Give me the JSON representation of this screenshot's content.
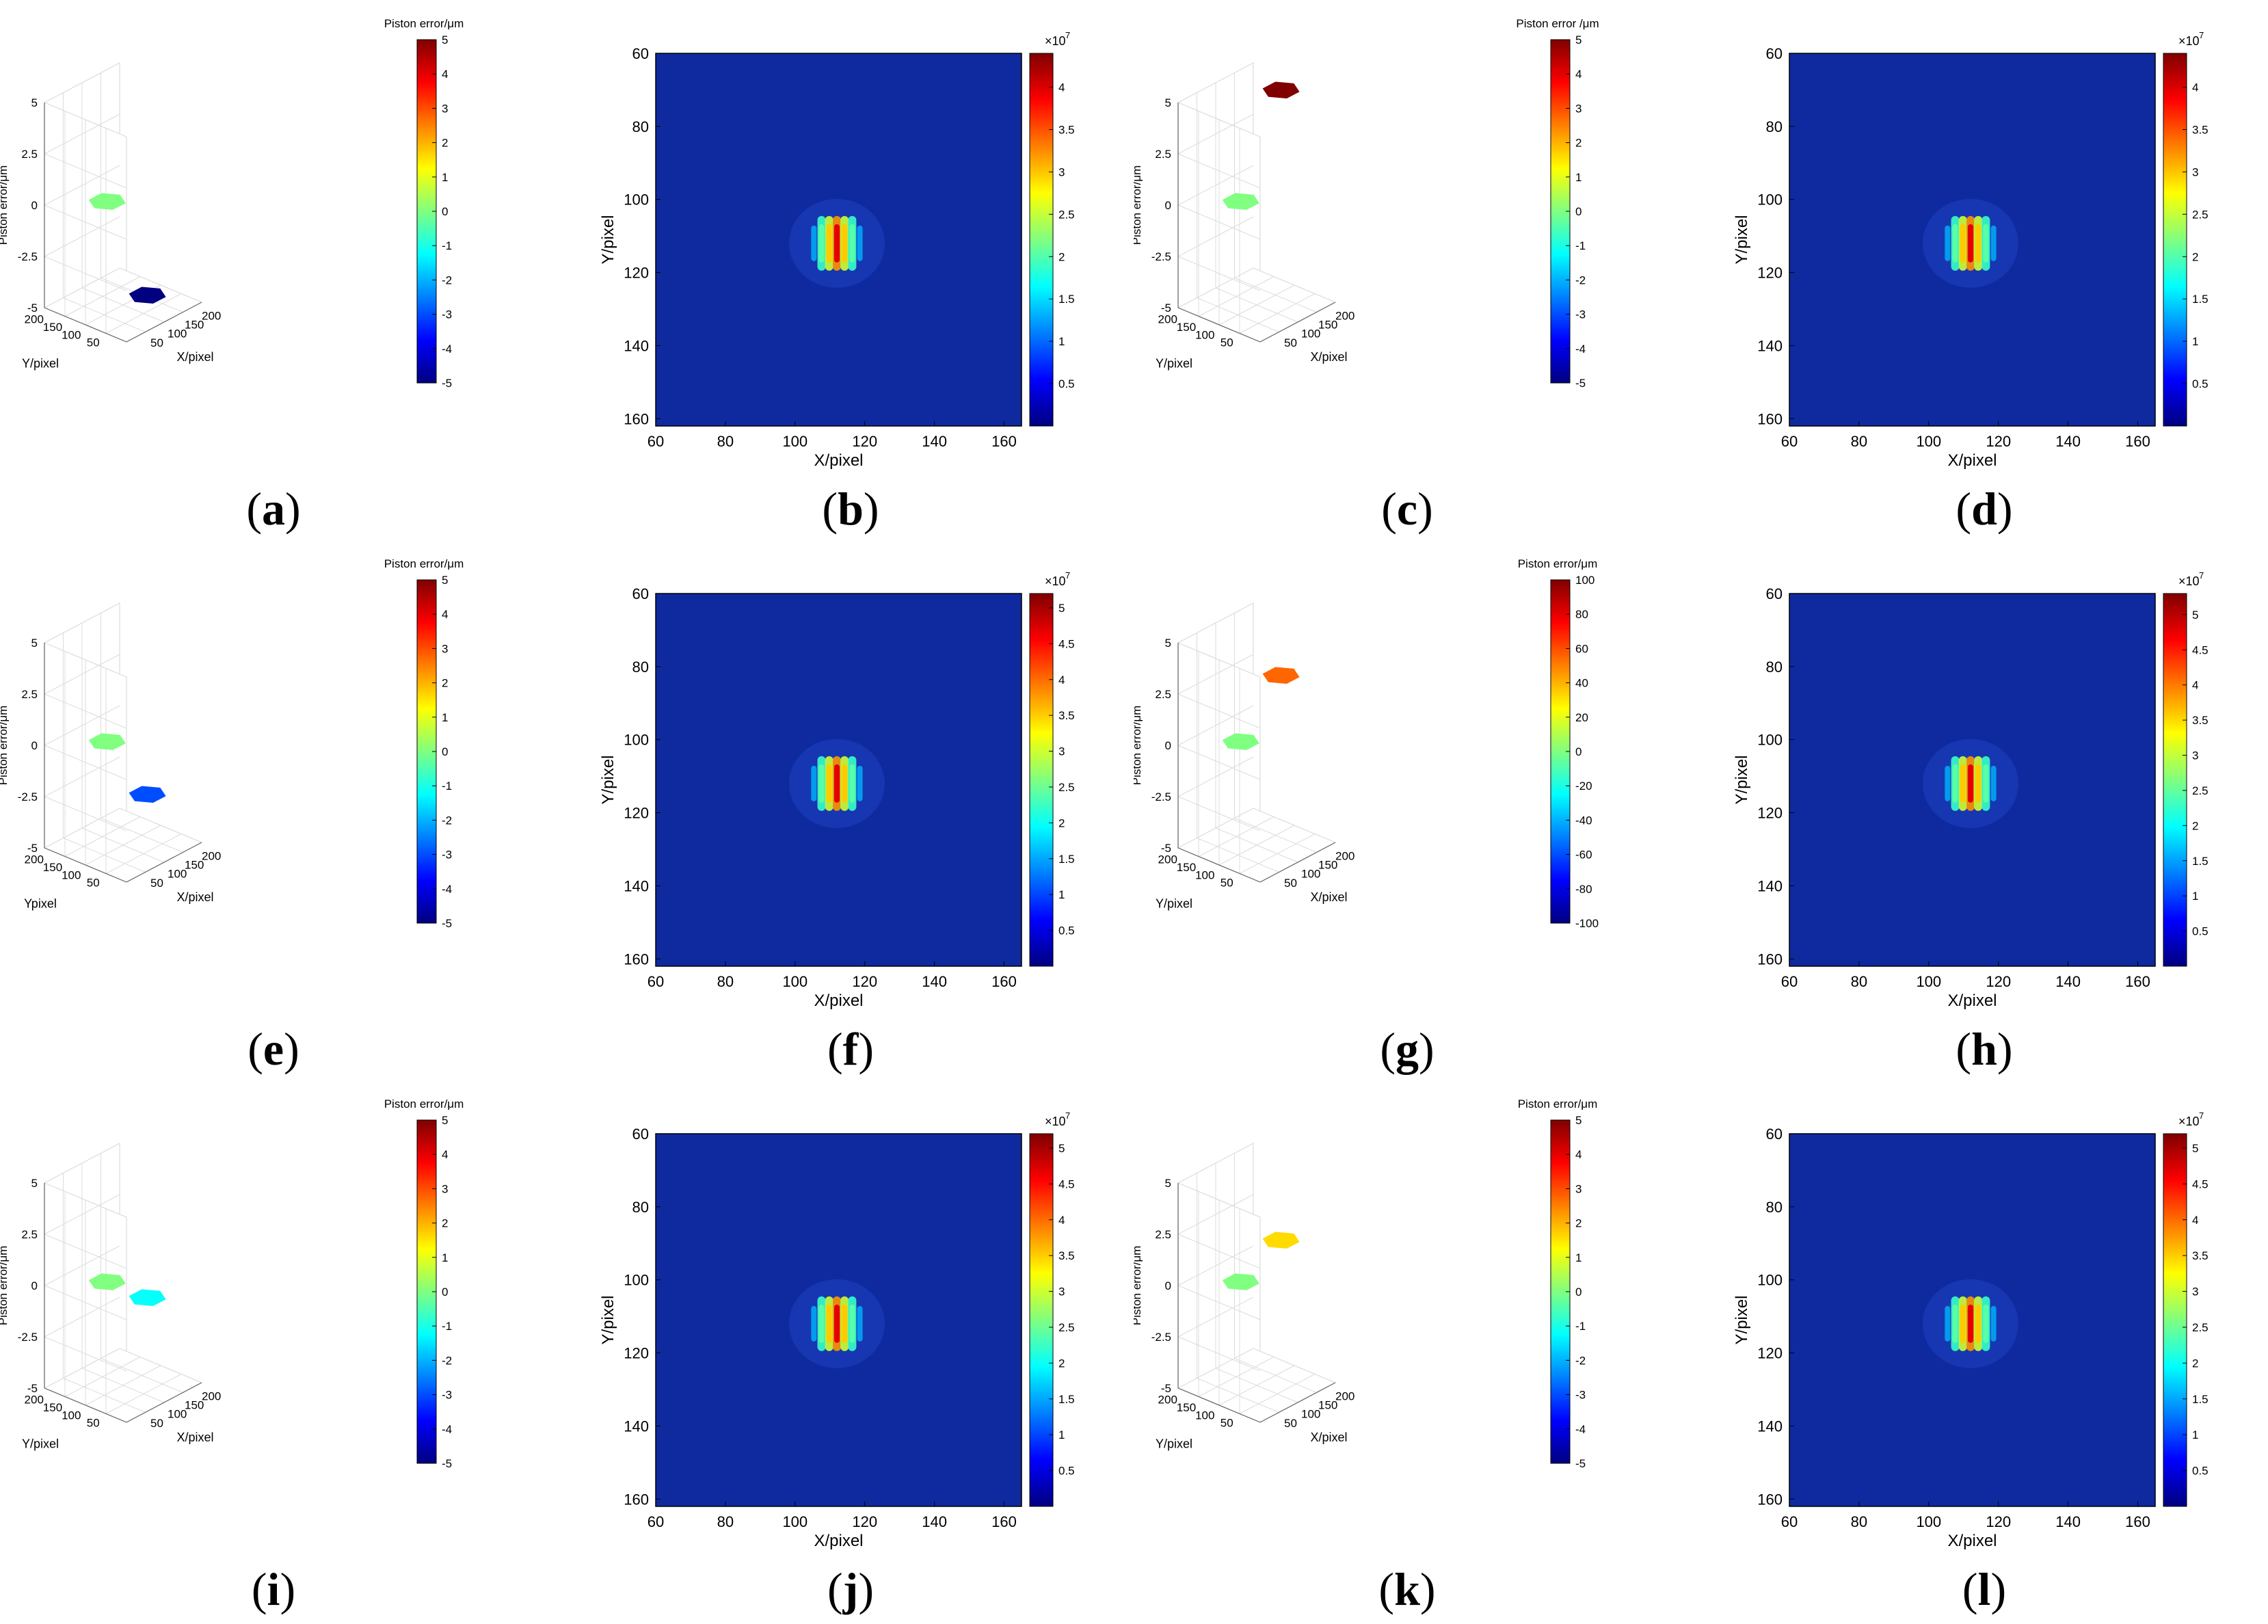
{
  "figure": {
    "colors": {
      "pattern_background": "#0f2a9f",
      "axis": "#000000",
      "grid": "#dcdcdc"
    },
    "colormap": "jet"
  },
  "chart_data": [
    {
      "id": "a",
      "type": "3d-surface",
      "label_parts": [
        "(",
        "a",
        ")"
      ],
      "zlabel": "Piston error/μm",
      "xlabel": "X/pixel",
      "ylabel": "Y/pixel",
      "zticks": [
        "5",
        "2.5",
        "0",
        "-2.5",
        "-5"
      ],
      "xticks": [
        "50",
        "100",
        "150",
        "200"
      ],
      "yticks": [
        "200",
        "150",
        "100",
        "50"
      ],
      "colorbar_title": "Piston error/μm",
      "colorbar_range": [
        -5,
        5
      ],
      "colorbar_ticks": [
        "5",
        "4",
        "3",
        "2",
        "1",
        "0",
        "-1",
        "-2",
        "-3",
        "-4",
        "-5"
      ],
      "segments": [
        {
          "name": "reference",
          "z": 0
        },
        {
          "name": "test",
          "z": -5
        }
      ]
    },
    {
      "id": "b",
      "type": "heatmap",
      "label_parts": [
        "(",
        "b",
        ")"
      ],
      "xlabel": "X/pixel",
      "ylabel": "Y/pixel",
      "xticks": [
        "60",
        "80",
        "100",
        "120",
        "140",
        "160"
      ],
      "yticks": [
        "60",
        "80",
        "100",
        "120",
        "140",
        "160"
      ],
      "xlim": [
        60,
        165
      ],
      "ylim": [
        60,
        162
      ],
      "colorbar_exponent": "×10",
      "colorbar_power": "7",
      "colorbar_max": 4.4,
      "colorbar_ticks": [
        "4",
        "3.5",
        "3",
        "2.5",
        "2",
        "1.5",
        "1",
        "0.5"
      ],
      "peak": {
        "x": 112,
        "y": 112,
        "fringes": 5
      }
    },
    {
      "id": "c",
      "type": "3d-surface",
      "label_parts": [
        "(",
        "c",
        ")"
      ],
      "zlabel": "Piston error/μm",
      "xlabel": "X/pixel",
      "ylabel": "Y/pixel",
      "zticks": [
        "5",
        "2.5",
        "0",
        "-2.5",
        "-5"
      ],
      "xticks": [
        "50",
        "100",
        "150",
        "200"
      ],
      "yticks": [
        "200",
        "150",
        "100",
        "50"
      ],
      "colorbar_title": "Piston error /μm",
      "colorbar_range": [
        -5,
        5
      ],
      "colorbar_ticks": [
        "5",
        "4",
        "3",
        "2",
        "1",
        "0",
        "-1",
        "-2",
        "-3",
        "-4",
        "-5"
      ],
      "segments": [
        {
          "name": "reference",
          "z": 0
        },
        {
          "name": "test",
          "z": 5
        }
      ]
    },
    {
      "id": "d",
      "type": "heatmap",
      "label_parts": [
        "(",
        "d",
        ")"
      ],
      "xlabel": "X/pixel",
      "ylabel": "Y/pixel",
      "xticks": [
        "60",
        "80",
        "100",
        "120",
        "140",
        "160"
      ],
      "yticks": [
        "60",
        "80",
        "100",
        "120",
        "140",
        "160"
      ],
      "xlim": [
        60,
        165
      ],
      "ylim": [
        60,
        162
      ],
      "colorbar_exponent": "×10",
      "colorbar_power": "7",
      "colorbar_max": 4.4,
      "colorbar_ticks": [
        "4",
        "3.5",
        "3",
        "2.5",
        "2",
        "1.5",
        "1",
        "0.5"
      ],
      "peak": {
        "x": 112,
        "y": 112,
        "fringes": 5
      }
    },
    {
      "id": "e",
      "type": "3d-surface",
      "label_parts": [
        "(",
        "e",
        ")"
      ],
      "zlabel": "Piston error/μm",
      "xlabel": "X/pixel",
      "ylabel": "Ypixel",
      "zticks": [
        "5",
        "2.5",
        "0",
        "-2.5",
        "-5"
      ],
      "xticks": [
        "50",
        "100",
        "150",
        "200"
      ],
      "yticks": [
        "200",
        "150",
        "100",
        "50"
      ],
      "colorbar_title": "Piston error/μm",
      "colorbar_range": [
        -5,
        5
      ],
      "colorbar_ticks": [
        "5",
        "4",
        "3",
        "2",
        "1",
        "0",
        "-1",
        "-2",
        "-3",
        "-4",
        "-5"
      ],
      "segments": [
        {
          "name": "reference",
          "z": 0
        },
        {
          "name": "test",
          "z": -3
        }
      ]
    },
    {
      "id": "f",
      "type": "heatmap",
      "label_parts": [
        "(",
        "f",
        ")"
      ],
      "xlabel": "X/pixel",
      "ylabel": "Y/pixel",
      "xticks": [
        "60",
        "80",
        "100",
        "120",
        "140",
        "160"
      ],
      "yticks": [
        "60",
        "80",
        "100",
        "120",
        "140",
        "160"
      ],
      "xlim": [
        60,
        165
      ],
      "ylim": [
        60,
        162
      ],
      "colorbar_exponent": "×10",
      "colorbar_power": "7",
      "colorbar_max": 5.2,
      "colorbar_ticks": [
        "5",
        "4.5",
        "4",
        "3.5",
        "3",
        "2.5",
        "2",
        "1.5",
        "1",
        "0.5"
      ],
      "peak": {
        "x": 112,
        "y": 112,
        "fringes": 5
      }
    },
    {
      "id": "g",
      "type": "3d-surface",
      "label_parts": [
        "(",
        "g",
        ")"
      ],
      "zlabel": "Piston error/μm",
      "xlabel": "X/pixel",
      "ylabel": "Y/pixel",
      "zticks": [
        "5",
        "2.5",
        "0",
        "-2.5",
        "-5"
      ],
      "xticks": [
        "50",
        "100",
        "150",
        "200"
      ],
      "yticks": [
        "200",
        "150",
        "100",
        "50"
      ],
      "colorbar_title": "Piston error/μm",
      "colorbar_range": [
        -100,
        100
      ],
      "colorbar_ticks": [
        "100",
        "80",
        "60",
        "40",
        "20",
        "0",
        "-20",
        "-40",
        "-60",
        "-80",
        "-100"
      ],
      "segments": [
        {
          "name": "reference",
          "z": 0
        },
        {
          "name": "test",
          "z": 55
        }
      ]
    },
    {
      "id": "h",
      "type": "heatmap",
      "label_parts": [
        "(",
        "h",
        ")"
      ],
      "xlabel": "X/pixel",
      "ylabel": "Y/pixel",
      "xticks": [
        "60",
        "80",
        "100",
        "120",
        "140",
        "160"
      ],
      "yticks": [
        "60",
        "80",
        "100",
        "120",
        "140",
        "160"
      ],
      "xlim": [
        60,
        165
      ],
      "ylim": [
        60,
        162
      ],
      "colorbar_exponent": "×10",
      "colorbar_power": "7",
      "colorbar_max": 5.3,
      "colorbar_ticks": [
        "5",
        "4.5",
        "4",
        "3.5",
        "3",
        "2.5",
        "2",
        "1.5",
        "1",
        "0.5"
      ],
      "peak": {
        "x": 112,
        "y": 112,
        "fringes": 5
      }
    },
    {
      "id": "i",
      "type": "3d-surface",
      "label_parts": [
        "(",
        "i",
        ")"
      ],
      "zlabel": "Piston error/μm",
      "xlabel": "X/pixel",
      "ylabel": "Y/pixel",
      "zticks": [
        "5",
        "2.5",
        "0",
        "-2.5",
        "-5"
      ],
      "xticks": [
        "50",
        "100",
        "150",
        "200"
      ],
      "yticks": [
        "200",
        "150",
        "100",
        "50"
      ],
      "colorbar_title": "Piston error/μm",
      "colorbar_range": [
        -5,
        5
      ],
      "colorbar_ticks": [
        "5",
        "4",
        "3",
        "2",
        "1",
        "0",
        "-1",
        "-2",
        "-3",
        "-4",
        "-5"
      ],
      "segments": [
        {
          "name": "reference",
          "z": 0
        },
        {
          "name": "test",
          "z": -1.2
        }
      ]
    },
    {
      "id": "j",
      "type": "heatmap",
      "label_parts": [
        "(",
        "j",
        ")"
      ],
      "xlabel": "X/pixel",
      "ylabel": "Y/pixel",
      "xticks": [
        "60",
        "80",
        "100",
        "120",
        "140",
        "160"
      ],
      "yticks": [
        "60",
        "80",
        "100",
        "120",
        "140",
        "160"
      ],
      "xlim": [
        60,
        165
      ],
      "ylim": [
        60,
        162
      ],
      "colorbar_exponent": "×10",
      "colorbar_power": "7",
      "colorbar_max": 5.2,
      "colorbar_ticks": [
        "5",
        "4.5",
        "4",
        "3.5",
        "3",
        "2.5",
        "2",
        "1.5",
        "1",
        "0.5"
      ],
      "peak": {
        "x": 112,
        "y": 112,
        "fringes": 5
      }
    },
    {
      "id": "k",
      "type": "3d-surface",
      "label_parts": [
        "(",
        "k",
        ")"
      ],
      "zlabel": "Piston error/μm",
      "xlabel": "X/pixel",
      "ylabel": "Y/pixel",
      "zticks": [
        "5",
        "2.5",
        "0",
        "-2.5",
        "-5"
      ],
      "xticks": [
        "50",
        "100",
        "150",
        "200"
      ],
      "yticks": [
        "200",
        "150",
        "100",
        "50"
      ],
      "colorbar_title": "Piston error/μm",
      "colorbar_range": [
        -5,
        5
      ],
      "colorbar_ticks": [
        "5",
        "4",
        "3",
        "2",
        "1",
        "0",
        "-1",
        "-2",
        "-3",
        "-4",
        "-5"
      ],
      "segments": [
        {
          "name": "reference",
          "z": 0
        },
        {
          "name": "test",
          "z": 1.6
        }
      ]
    },
    {
      "id": "l",
      "type": "heatmap",
      "label_parts": [
        "(",
        "l",
        ")"
      ],
      "xlabel": "X/pixel",
      "ylabel": "Y/pixel",
      "xticks": [
        "60",
        "80",
        "100",
        "120",
        "140",
        "160"
      ],
      "yticks": [
        "60",
        "80",
        "100",
        "120",
        "140",
        "160"
      ],
      "xlim": [
        60,
        165
      ],
      "ylim": [
        60,
        162
      ],
      "colorbar_exponent": "×10",
      "colorbar_power": "7",
      "colorbar_max": 5.2,
      "colorbar_ticks": [
        "5",
        "4.5",
        "4",
        "3.5",
        "3",
        "2.5",
        "2",
        "1.5",
        "1",
        "0.5"
      ],
      "peak": {
        "x": 112,
        "y": 112,
        "fringes": 5
      }
    }
  ]
}
